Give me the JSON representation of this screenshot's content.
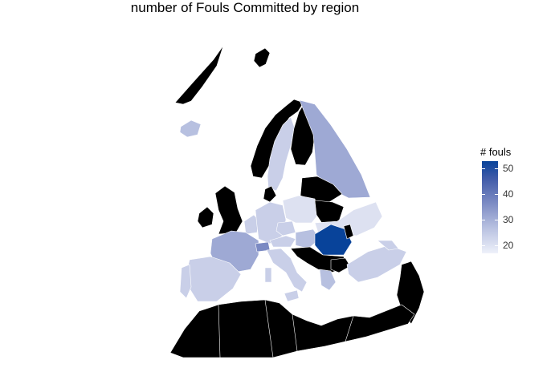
{
  "title": "number of Fouls Committed by region",
  "legend": {
    "title": "# fouls",
    "ticks": [
      "50",
      "40",
      "30",
      "20"
    ],
    "min": 17,
    "max": 53,
    "colors": [
      "#eef1fa",
      "#b7c0e0",
      "#7b8ac3",
      "#3f5aa8",
      "#08439a"
    ],
    "no_data_color": "#000000"
  }
}
